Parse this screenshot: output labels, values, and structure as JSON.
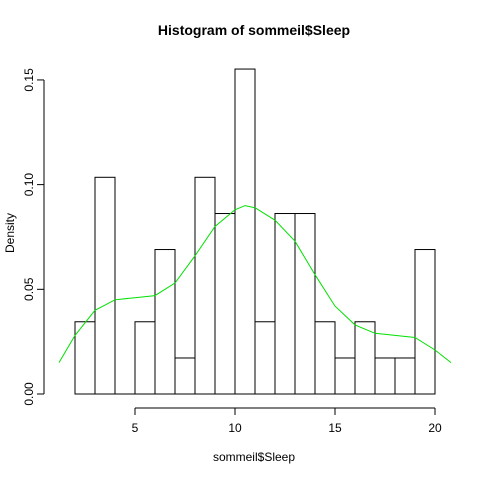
{
  "chart_data": {
    "type": "bar",
    "title": "Histogram of sommeil$Sleep",
    "xlabel": "sommeil$Sleep",
    "ylabel": "Density",
    "xlim": [
      1.2,
      21.0
    ],
    "ylim": [
      0,
      0.16
    ],
    "x_ticks": [
      5,
      10,
      15,
      20
    ],
    "x_tick_labels": [
      "5",
      "10",
      "15",
      "20"
    ],
    "y_ticks": [
      0.0,
      0.05,
      0.1,
      0.15
    ],
    "y_tick_labels": [
      "0.00",
      "0.05",
      "0.10",
      "0.15"
    ],
    "bin_width": 1,
    "bins": [
      {
        "start": 2,
        "end": 3,
        "density": 0.0345
      },
      {
        "start": 3,
        "end": 4,
        "density": 0.1035
      },
      {
        "start": 4,
        "end": 5,
        "density": 0.0
      },
      {
        "start": 5,
        "end": 6,
        "density": 0.0345
      },
      {
        "start": 6,
        "end": 7,
        "density": 0.069
      },
      {
        "start": 7,
        "end": 8,
        "density": 0.0172
      },
      {
        "start": 8,
        "end": 9,
        "density": 0.1035
      },
      {
        "start": 9,
        "end": 10,
        "density": 0.0862
      },
      {
        "start": 10,
        "end": 11,
        "density": 0.1552
      },
      {
        "start": 11,
        "end": 12,
        "density": 0.0345
      },
      {
        "start": 12,
        "end": 13,
        "density": 0.0862
      },
      {
        "start": 13,
        "end": 14,
        "density": 0.0862
      },
      {
        "start": 14,
        "end": 15,
        "density": 0.0345
      },
      {
        "start": 15,
        "end": 16,
        "density": 0.0172
      },
      {
        "start": 16,
        "end": 17,
        "density": 0.0345
      },
      {
        "start": 17,
        "end": 18,
        "density": 0.0172
      },
      {
        "start": 18,
        "end": 19,
        "density": 0.0172
      },
      {
        "start": 19,
        "end": 20,
        "density": 0.069
      }
    ],
    "density_curve": {
      "color": "#00e000",
      "x": [
        1.2,
        2.0,
        3.0,
        4.0,
        5.0,
        6.0,
        7.0,
        8.0,
        9.0,
        10.0,
        10.5,
        11.0,
        12.0,
        13.0,
        14.0,
        15.0,
        16.0,
        17.0,
        18.0,
        19.0,
        20.0,
        20.8
      ],
      "y": [
        0.015,
        0.028,
        0.04,
        0.045,
        0.046,
        0.047,
        0.053,
        0.066,
        0.08,
        0.088,
        0.09,
        0.089,
        0.083,
        0.073,
        0.057,
        0.042,
        0.033,
        0.029,
        0.028,
        0.027,
        0.021,
        0.015
      ]
    },
    "grid": false,
    "legend": false
  }
}
